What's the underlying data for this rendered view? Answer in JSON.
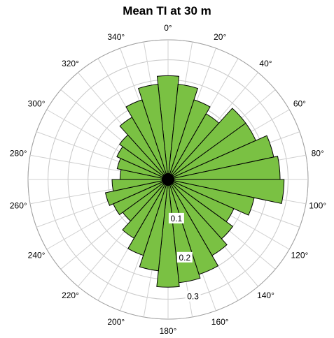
{
  "chart_data": {
    "type": "polar-bar",
    "title": "Mean TI at 30 m",
    "sector_width_deg": 12,
    "sectors_deg": [
      0,
      12,
      24,
      36,
      48,
      60,
      72,
      84,
      96,
      108,
      120,
      132,
      144,
      156,
      168,
      180,
      192,
      204,
      216,
      228,
      240,
      252,
      264,
      276,
      288,
      300,
      312,
      324,
      336,
      348
    ],
    "values": [
      0.26,
      0.24,
      0.21,
      0.19,
      0.24,
      0.24,
      0.27,
      0.28,
      0.29,
      0.22,
      0.18,
      0.2,
      0.22,
      0.25,
      0.26,
      0.27,
      0.23,
      0.2,
      0.17,
      0.14,
      0.15,
      0.16,
      0.14,
      0.12,
      0.13,
      0.14,
      0.15,
      0.18,
      0.21,
      0.24
    ],
    "angle_labels": [
      "0°",
      "20°",
      "40°",
      "60°",
      "80°",
      "100°",
      "120°",
      "140°",
      "160°",
      "180°",
      "200°",
      "220°",
      "240°",
      "260°",
      "280°",
      "300°",
      "320°",
      "340°"
    ],
    "radial_ticks": [
      {
        "value": 0.1,
        "label": "0.1"
      },
      {
        "value": 0.2,
        "label": "0.2"
      },
      {
        "value": 0.3,
        "label": "0.3"
      }
    ],
    "radial_max": 0.35,
    "grid": true,
    "bar_color": "#7ac143",
    "bar_edge_color": "#000000"
  }
}
